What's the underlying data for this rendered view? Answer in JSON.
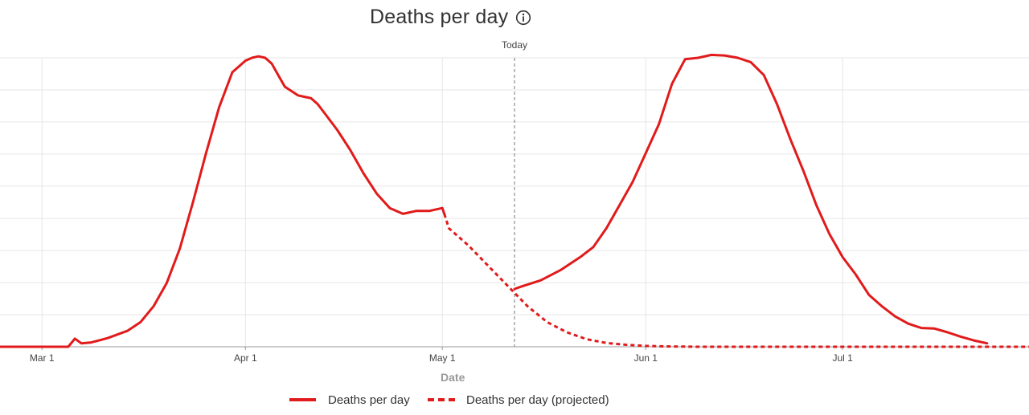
{
  "header": {
    "title": "Deaths per day",
    "info_icon": "info-circle-icon"
  },
  "colors": {
    "series": "#e11b1b",
    "grid": "#e6e6e6",
    "axis": "#999999",
    "today_line": "#777777"
  },
  "chart_data": {
    "type": "line",
    "title": "Deaths per day",
    "xlabel": "Date",
    "ylabel": "",
    "x_unit": "days since Mar 1",
    "x_ticks": [
      {
        "label": "Mar 1",
        "day": 0
      },
      {
        "label": "Apr 1",
        "day": 31
      },
      {
        "label": "May 1",
        "day": 61
      },
      {
        "label": "Jun 1",
        "day": 92
      },
      {
        "label": "Jul 1",
        "day": 122
      }
    ],
    "xlim": [
      -6.4,
      150.4
    ],
    "ylim": [
      0,
      100
    ],
    "y_gridlines": [
      0,
      11.1,
      22.2,
      33.3,
      44.4,
      55.6,
      66.7,
      77.8,
      88.9,
      100
    ],
    "y_tick_labels_visible": false,
    "grid": true,
    "legend_position": "bottom",
    "today": {
      "label": "Today",
      "day": 72
    },
    "series": [
      {
        "name": "Deaths per day",
        "style": "solid",
        "segment": "historical",
        "x": [
          -6.4,
          4.0,
          5.0,
          6.0,
          7.5,
          10,
          13,
          15,
          17,
          19,
          21,
          23,
          25,
          27,
          29,
          31,
          32,
          33,
          34,
          35,
          36,
          37,
          39,
          41,
          42,
          43,
          45,
          47,
          49,
          51,
          53,
          55,
          57,
          59,
          61,
          61.3
        ],
        "y": [
          0,
          0,
          2.8,
          1.2,
          1.5,
          3.0,
          5.5,
          8.5,
          14,
          22,
          34,
          50,
          67,
          83,
          95,
          99,
          100,
          100.5,
          100,
          98,
          94,
          90,
          87,
          86,
          84,
          81,
          75,
          68,
          60,
          53,
          48,
          46,
          47,
          47,
          48,
          46
        ]
      },
      {
        "name": "Deaths per day (projected)",
        "style": "dashed",
        "x": [
          61.3,
          62,
          65,
          68,
          71,
          74,
          77,
          80,
          83,
          86,
          89,
          92,
          95,
          100,
          110,
          120,
          130,
          140,
          150.4
        ],
        "y": [
          46,
          41,
          35,
          28,
          21,
          14,
          8.5,
          5,
          2.6,
          1.3,
          0.7,
          0.3,
          0.15,
          0,
          0,
          0,
          0,
          0,
          0
        ]
      },
      {
        "name": "Deaths per day",
        "style": "solid",
        "segment": "post-today",
        "x": [
          72,
          73,
          76,
          79,
          82,
          84,
          86,
          88,
          90,
          92,
          94,
          96,
          98,
          100,
          102,
          104,
          106,
          108,
          110,
          112,
          114,
          116,
          118,
          120,
          122,
          124,
          126,
          128,
          130,
          132,
          134,
          136,
          138,
          140,
          142,
          144
        ],
        "y": [
          20,
          20.8,
          23,
          26.5,
          31,
          34.5,
          41,
          49,
          57,
          67,
          77,
          91,
          99.5,
          100,
          101,
          100.8,
          100,
          98.5,
          94,
          84,
          72,
          61,
          49,
          39,
          31,
          25,
          18,
          14,
          10.5,
          8,
          6.5,
          6.3,
          5,
          3.5,
          2.2,
          1.2
        ]
      }
    ]
  },
  "axis": {
    "x_title": "Date",
    "today_label": "Today"
  },
  "legend": {
    "solid_label": "Deaths per day",
    "dashed_label": "Deaths per day (projected)"
  }
}
